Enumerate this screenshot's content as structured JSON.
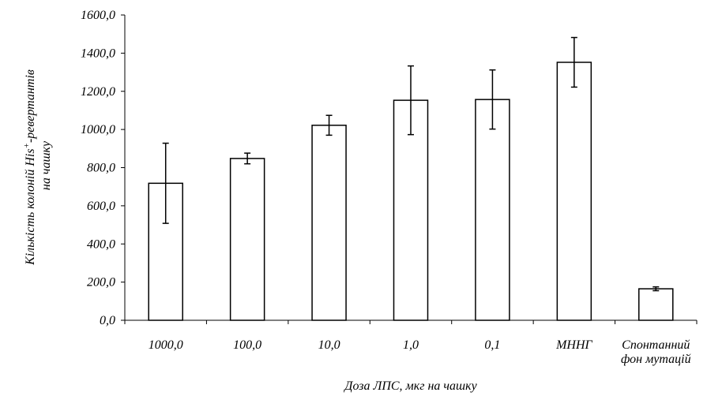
{
  "chart_data": {
    "type": "bar",
    "categories": [
      [
        "1000,0"
      ],
      [
        "100,0"
      ],
      [
        "10,0"
      ],
      [
        "1,0"
      ],
      [
        "0,1"
      ],
      [
        "МННГ"
      ],
      [
        "Спонтанний",
        "фон мутацій"
      ]
    ],
    "values": [
      718,
      848,
      1022,
      1153,
      1157,
      1352,
      165
    ],
    "errors": [
      210,
      28,
      52,
      180,
      155,
      130,
      10
    ],
    "ylim": [
      0,
      1600
    ],
    "yticks": [
      0,
      200,
      400,
      600,
      800,
      1000,
      1200,
      1400,
      1600
    ],
    "ytick_labels": [
      "0,0",
      "200,0",
      "400,0",
      "600,0",
      "800,0",
      "1000,0",
      "1200,0",
      "1400,0",
      "1600,0"
    ],
    "xlabel": "Доза ЛПС, мкг на чашку",
    "ylabel": {
      "line1_part1": "Кількість колоній His",
      "line1_sup": "+",
      "line1_part2": "-ревертантів",
      "line2": "на чашку"
    },
    "bar_fill": "#ffffff",
    "bar_stroke": "#000000",
    "grid": false,
    "legend": "none"
  }
}
